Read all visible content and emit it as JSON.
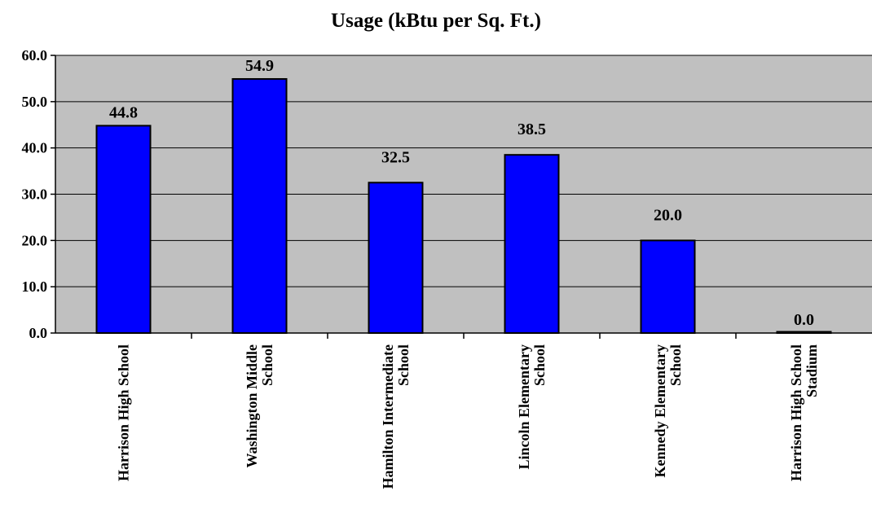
{
  "chart_data": {
    "type": "bar",
    "title": "Usage (kBtu per Sq. Ft.)",
    "xlabel": "",
    "ylabel": "",
    "categories": [
      "Harrison High School",
      "Washington Middle School",
      "Hamilton Intermediate School",
      "Lincoln Elementary School",
      "Kennedy Elementary School",
      "Harrison High School Stadium"
    ],
    "category_lines": [
      [
        "Harrison High School"
      ],
      [
        "Washington Middle",
        "School"
      ],
      [
        "Hamilton Intermediate",
        "School"
      ],
      [
        "Lincoln Elementary",
        "School"
      ],
      [
        "Kennedy Elementary",
        "School"
      ],
      [
        "Harrison High School",
        "Stadium"
      ]
    ],
    "values": [
      44.8,
      54.9,
      32.5,
      38.5,
      20.0,
      0.0
    ],
    "data_labels": [
      "44.8",
      "54.9",
      "32.5",
      "38.5",
      "20.0",
      "0.0"
    ],
    "y_ticks": [
      "0.0",
      "10.0",
      "20.0",
      "30.0",
      "40.0",
      "50.0",
      "60.0"
    ],
    "ylim": [
      0,
      60
    ],
    "grid": true,
    "legend": "none",
    "colors": {
      "bar_fill": "#0000FF",
      "bar_stroke": "#000000",
      "plot_background": "#C0C0C0",
      "gridline": "#000000"
    }
  }
}
